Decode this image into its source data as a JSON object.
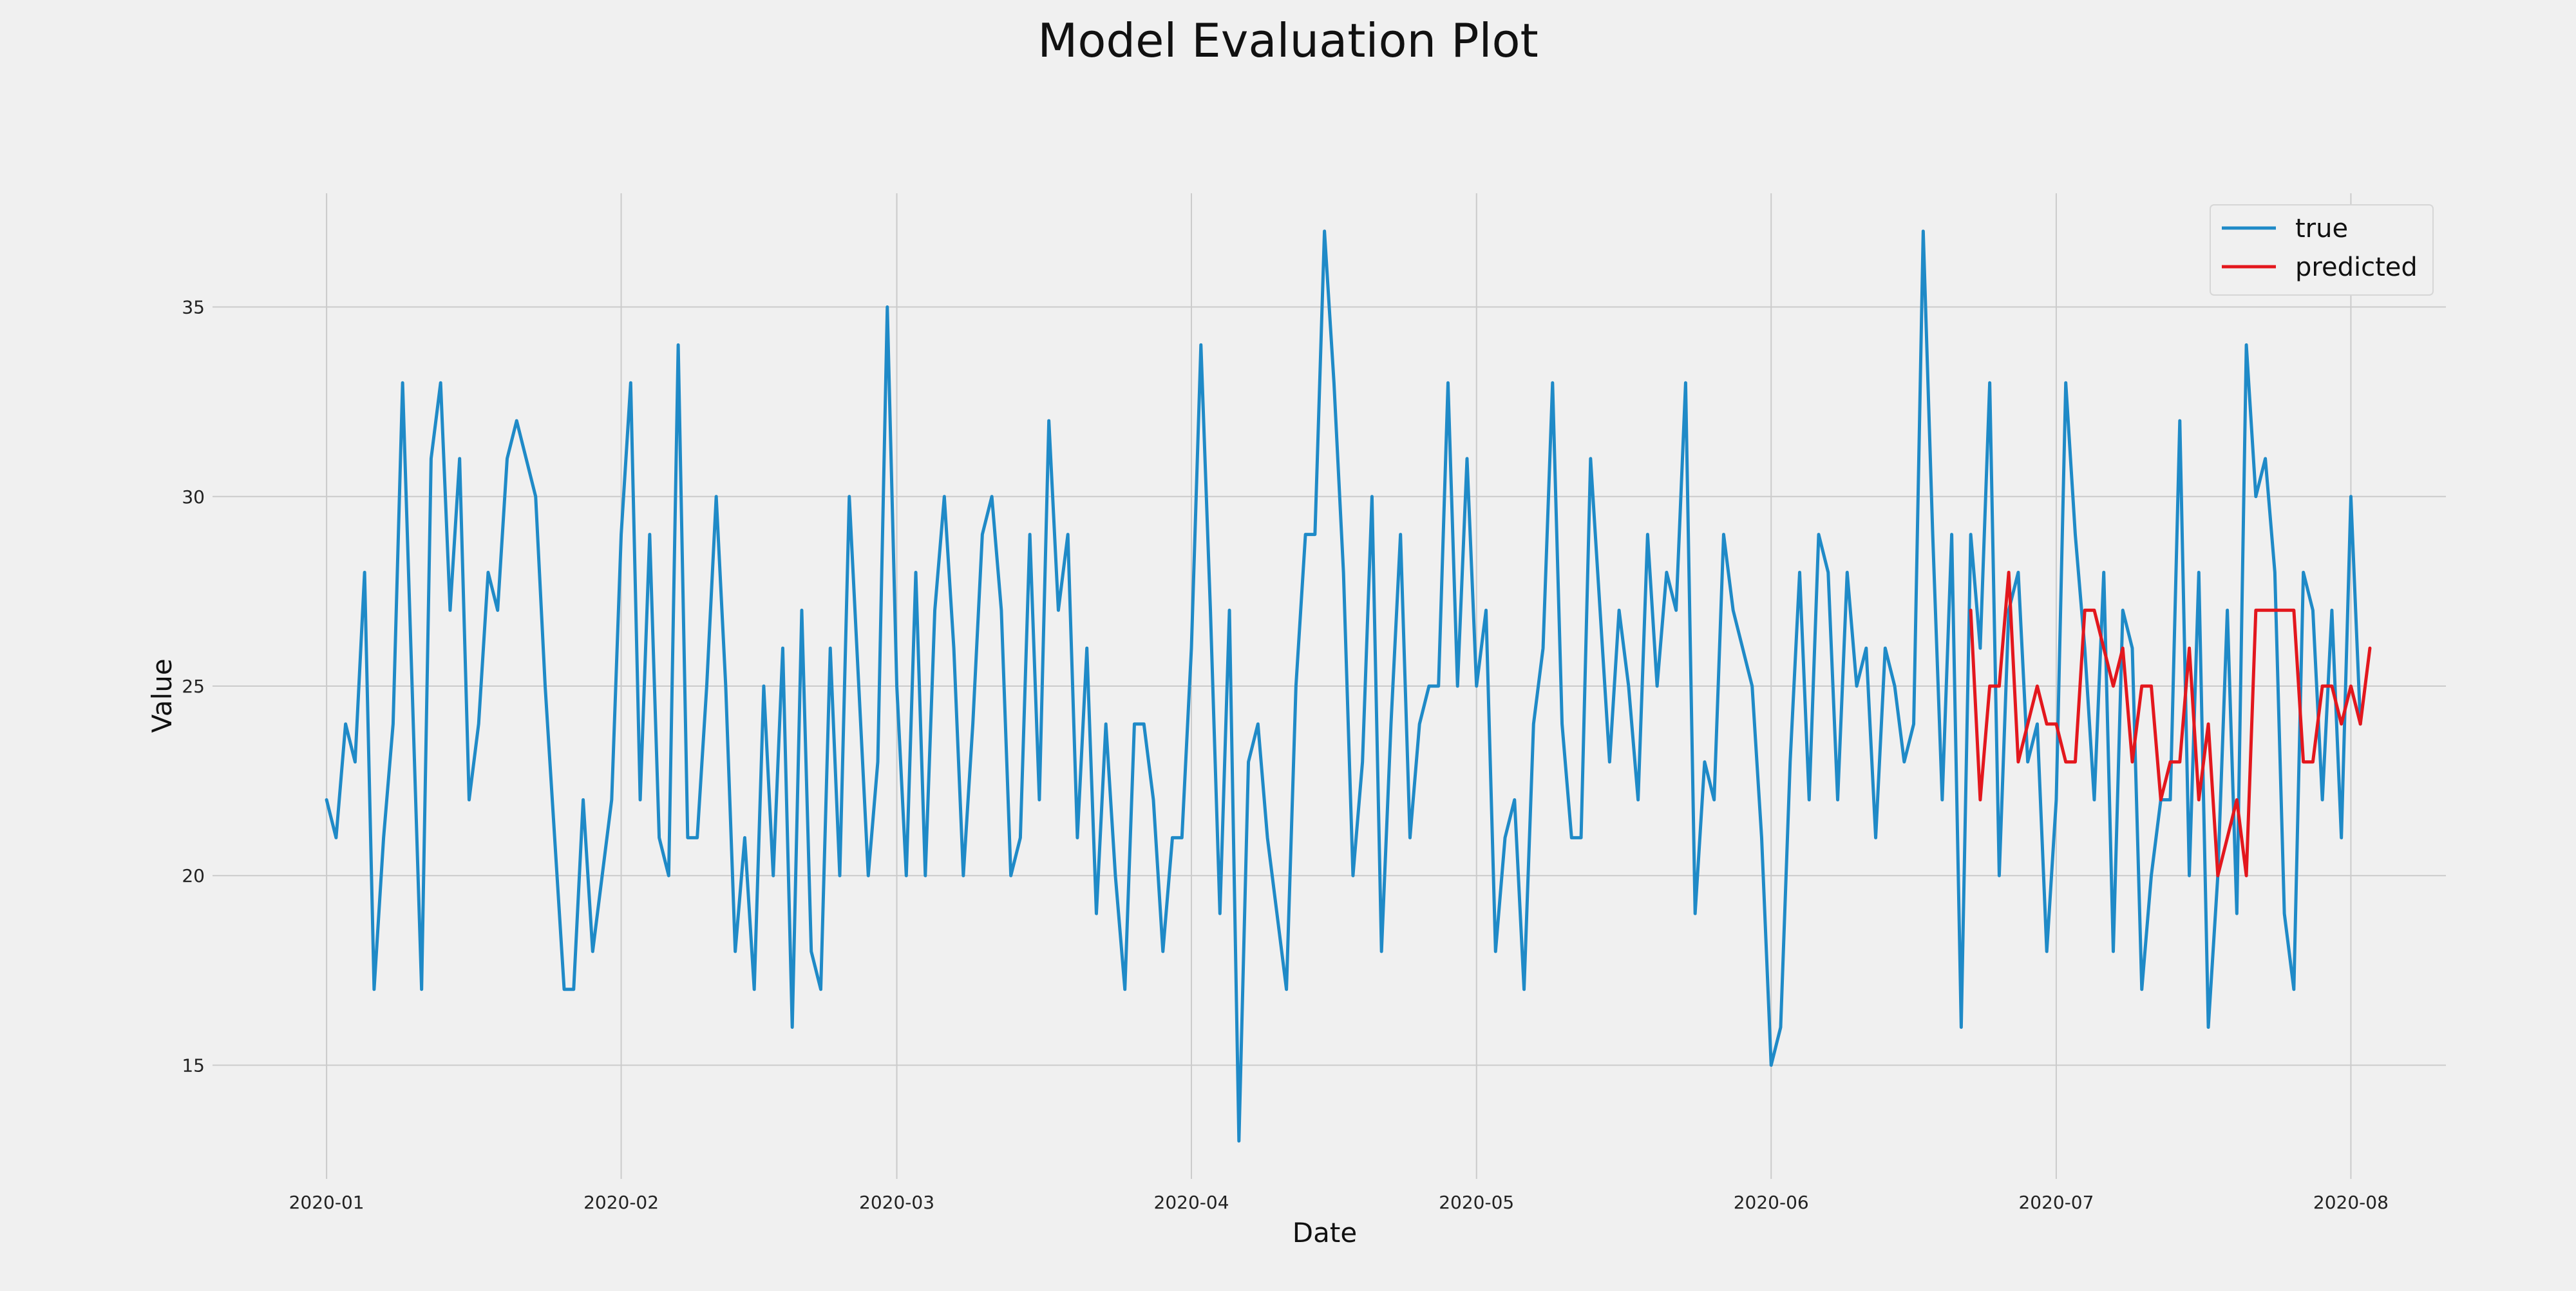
{
  "chart_data": {
    "type": "line",
    "title": "Model Evaluation Plot",
    "xlabel": "Date",
    "ylabel": "Value",
    "x_ticks": [
      "2020-01",
      "2020-02",
      "2020-03",
      "2020-04",
      "2020-05",
      "2020-06",
      "2020-07",
      "2020-08"
    ],
    "y_ticks": [
      15,
      20,
      25,
      30,
      35
    ],
    "xlim": [
      "2019-12-20",
      "2020-08-11"
    ],
    "ylim": [
      12,
      38
    ],
    "grid": true,
    "legend_position": "top-right",
    "start_date": "2020-01-01",
    "series": [
      {
        "name": "true",
        "color": "#1f8ac7",
        "x_start": "2020-01-01",
        "values": [
          22,
          21,
          24,
          23,
          28,
          17,
          21,
          24,
          33,
          25,
          17,
          31,
          33,
          27,
          31,
          22,
          24,
          28,
          27,
          31,
          32,
          31,
          30,
          25,
          21,
          17,
          17,
          22,
          18,
          20,
          22,
          29,
          33,
          22,
          29,
          21,
          20,
          34,
          21,
          21,
          25,
          30,
          25,
          18,
          21,
          17,
          25,
          20,
          26,
          16,
          27,
          18,
          17,
          26,
          20,
          30,
          25,
          20,
          23,
          35,
          25,
          20,
          28,
          20,
          27,
          30,
          26,
          20,
          24,
          29,
          30,
          27,
          20,
          21,
          29,
          22,
          32,
          27,
          29,
          21,
          26,
          19,
          24,
          20,
          17,
          24,
          24,
          22,
          18,
          21,
          21,
          26,
          34,
          27,
          19,
          27,
          13,
          23,
          24,
          21,
          19,
          17,
          25,
          29,
          29,
          37,
          33,
          28,
          20,
          23,
          30,
          18,
          24,
          29,
          21,
          24,
          25,
          25,
          33,
          25,
          31,
          25,
          27,
          18,
          21,
          22,
          17,
          24,
          26,
          33,
          24,
          21,
          21,
          31,
          27,
          23,
          27,
          25,
          22,
          29,
          25,
          28,
          27,
          33,
          19,
          23,
          22,
          29,
          27,
          26,
          25,
          21,
          15,
          16,
          23,
          28,
          22,
          29,
          28,
          22,
          28,
          25,
          26,
          21,
          26,
          25,
          23,
          24,
          37,
          29,
          22,
          29,
          16,
          29,
          26,
          33,
          20,
          27,
          28,
          23,
          24,
          18,
          22,
          33,
          29,
          26,
          22,
          28,
          18,
          27,
          26,
          17,
          20,
          22,
          22,
          32,
          20,
          28,
          16,
          20,
          27,
          19,
          34,
          30,
          31,
          28,
          19,
          17,
          28,
          27,
          22,
          27,
          21,
          30,
          24
        ]
      },
      {
        "name": "predicted",
        "color": "#e3171d",
        "x_start": "2020-06-22",
        "values": [
          27,
          22,
          25,
          25,
          28,
          23,
          24,
          25,
          24,
          24,
          23,
          23,
          27,
          27,
          26,
          25,
          26,
          23,
          25,
          25,
          22,
          23,
          23,
          26,
          22,
          24,
          20,
          21,
          22,
          20,
          27,
          27,
          27,
          27,
          27,
          23,
          23,
          25,
          25,
          24,
          25,
          24,
          26
        ]
      }
    ]
  }
}
